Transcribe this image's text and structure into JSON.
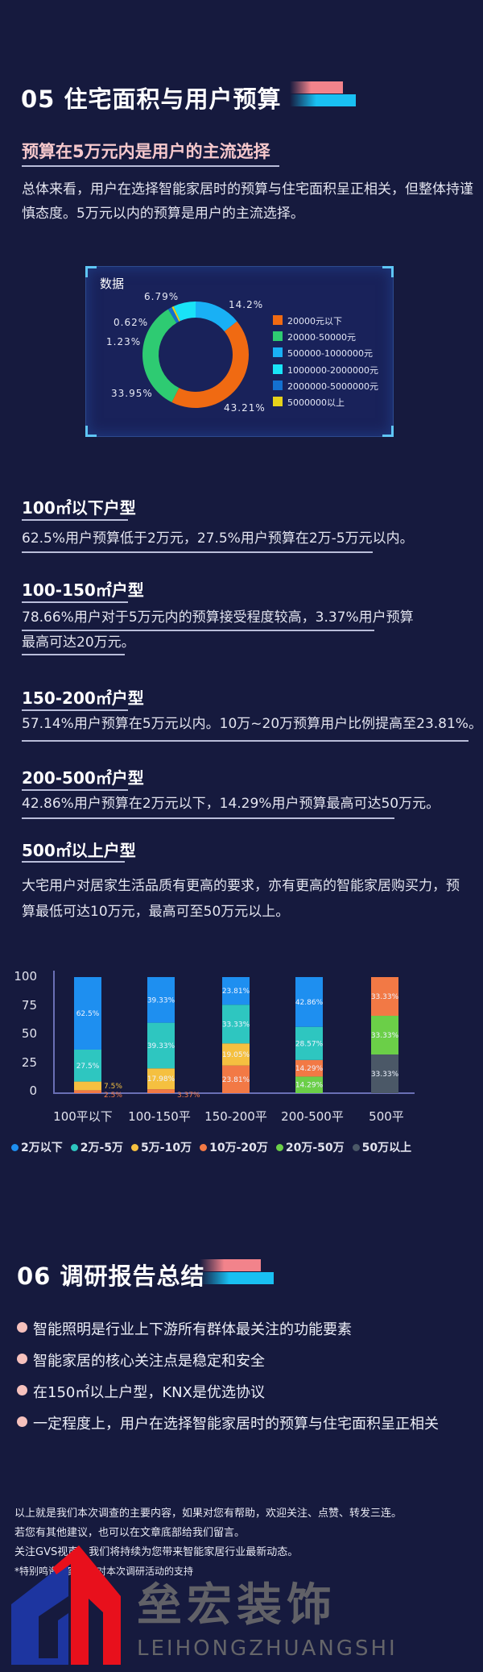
{
  "section05": {
    "title": "05  住宅面积与用户预算",
    "subtitle": "预算在5万元内是用户的主流选择",
    "intro_lines": [
      "总体来看，用户在选择智能家居时的预算与住宅面积呈正相关，但整体持谨",
      "慎态度。5万元以内的预算是用户的主流选择。"
    ]
  },
  "donut": {
    "title": "数据",
    "legend": [
      {
        "label": "20000元以下",
        "color": "#f06a12"
      },
      {
        "label": "20000-50000元",
        "color": "#2ecb72"
      },
      {
        "label": "500000-1000000元",
        "color": "#19b0f5"
      },
      {
        "label": "1000000-2000000元",
        "color": "#19e3f7"
      },
      {
        "label": "2000000-5000000元",
        "color": "#1470d0"
      },
      {
        "label": "5000000以上",
        "color": "#e6d21a"
      }
    ],
    "labels": {
      "p1": "14.2%",
      "p2": "43.21%",
      "p3": "33.95%",
      "p4": "1.23%",
      "p5": "0.62%",
      "p6": "6.79%"
    }
  },
  "chart_data": [
    {
      "type": "pie",
      "title": "数据",
      "donut": true,
      "slices": [
        {
          "name": "500000-1000000元",
          "value": 14.2,
          "color": "#19b0f5"
        },
        {
          "name": "20000元以下",
          "value": 43.21,
          "color": "#f06a12"
        },
        {
          "name": "20000-50000元",
          "value": 33.95,
          "color": "#2ecb72"
        },
        {
          "name": "2000000-5000000元",
          "value": 1.23,
          "color": "#1470d0"
        },
        {
          "name": "5000000以上",
          "value": 0.62,
          "color": "#e6d21a"
        },
        {
          "name": "1000000-2000000元",
          "value": 6.79,
          "color": "#19e3f7"
        }
      ],
      "legend": "right"
    },
    {
      "type": "bar",
      "stacked": true,
      "categories": [
        "100平以下",
        "100-150平",
        "150-200平",
        "200-500平",
        "500平"
      ],
      "yticks": [
        "100",
        "75",
        "50",
        "25",
        "0"
      ],
      "ylim": [
        0,
        100
      ],
      "legend": "bottom",
      "series": [
        {
          "name": "2万以下",
          "color": "#1e8ff0",
          "values": [
            62.5,
            39.33,
            23.81,
            42.86,
            0
          ],
          "labels": [
            "62.5%",
            "39.33%",
            "23.81%",
            "42.86%",
            ""
          ]
        },
        {
          "name": "2万-5万",
          "color": "#2ec6c0",
          "values": [
            27.5,
            39.33,
            33.33,
            28.57,
            0
          ],
          "labels": [
            "27.5%",
            "39.33%",
            "33.33%",
            "28.57%",
            ""
          ]
        },
        {
          "name": "5万-10万",
          "color": "#f5c040",
          "values": [
            7.5,
            17.98,
            19.05,
            0,
            0
          ],
          "labels": [
            "7.5%",
            "17.98%",
            "19.05%",
            "",
            ""
          ]
        },
        {
          "name": "10万-20万",
          "color": "#f27945",
          "values": [
            2.5,
            3.37,
            23.81,
            14.29,
            33.33
          ],
          "labels": [
            "2.5%",
            "3.37%",
            "23.81%",
            "14.29%",
            "33.33%"
          ]
        },
        {
          "name": "20万-50万",
          "color": "#6bcf48",
          "values": [
            0,
            0,
            0,
            14.29,
            33.33
          ],
          "labels": [
            "",
            "",
            "",
            "14.29%",
            "33.33%"
          ]
        },
        {
          "name": "50万以上",
          "color": "#4b5867",
          "values": [
            0,
            0,
            0,
            0,
            33.33
          ],
          "labels": [
            "",
            "",
            "",
            "",
            "33.33%"
          ]
        }
      ]
    }
  ],
  "segments": [
    {
      "heading": "100㎡以下户型",
      "lines": [
        "62.5%用户预算低于2万元，27.5%用户预算在2万-5万元以内。"
      ]
    },
    {
      "heading": "100-150㎡户型",
      "lines": [
        "78.66%用户对于5万元内的预算接受程度较高，3.37%用户预算",
        "最高可达20万元。"
      ]
    },
    {
      "heading": "150-200㎡户型",
      "lines": [
        "57.14%用户预算在5万元以内。10万~20万预算用户比例提高至23.81%。"
      ]
    },
    {
      "heading": "200-500㎡户型",
      "lines": [
        "42.86%用户预算在2万元以下，14.29%用户预算最高可达50万元。"
      ]
    },
    {
      "heading": "500㎡以上户型",
      "lines": [
        "大宅用户对居家生活品质有更高的要求，亦有更高的智能家居购买力，预",
        "算最低可达10万元，最高可至50万元以上。"
      ]
    }
  ],
  "section06": {
    "title": "06  调研报告总结",
    "bullets": [
      "智能照明是行业上下游所有群体最关注的功能要素",
      "智能家居的核心关注点是稳定和安全",
      "在150㎡以上户型，KNX是优选协议",
      "一定程度上，用户在选择智能家居时的预算与住宅面积呈正相关"
    ]
  },
  "footer": {
    "lines": [
      "以上就是我们本次调查的主要内容，如果对您有帮助，欢迎关注、点赞、转发三连。",
      "若您有其他建议，也可以在文章底部给我们留言。",
      "关注GVS视声，我们将持续为您带来智能家居行业最新动态。"
    ],
    "thanks": "*特别鸣谢智家智客对本次调研活动的支持"
  },
  "watermark": {
    "name": "垒宏装饰",
    "pinyin": "LEIHONGZHUANGSHI",
    "blue": "#1d35a0",
    "red": "#e8101c"
  }
}
